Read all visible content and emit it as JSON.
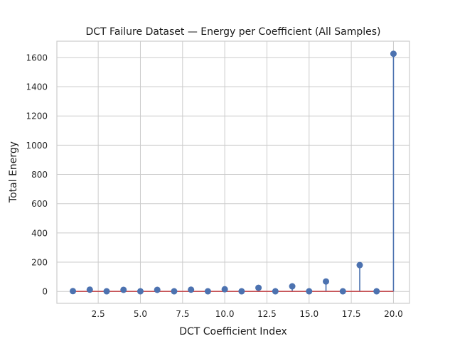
{
  "chart_data": {
    "type": "stem",
    "title": "DCT Failure Dataset — Energy per Coefficient (All Samples)",
    "xlabel": "DCT Coefficient Index",
    "ylabel": "Total Energy",
    "xlim": [
      0.05,
      20.95
    ],
    "ylim": [
      -81.5,
      1711
    ],
    "xticks": [
      2.5,
      5.0,
      7.5,
      10.0,
      12.5,
      15.0,
      17.5,
      20.0
    ],
    "xtick_labels": [
      "2.5",
      "5.0",
      "7.5",
      "10.0",
      "12.5",
      "15.0",
      "17.5",
      "20.0"
    ],
    "yticks": [
      0,
      200,
      400,
      600,
      800,
      1000,
      1200,
      1400,
      1600
    ],
    "ytick_labels": [
      "0",
      "200",
      "400",
      "600",
      "800",
      "1000",
      "1200",
      "1400",
      "1600"
    ],
    "grid": true,
    "baseline": 0,
    "x": [
      1,
      2,
      3,
      4,
      5,
      6,
      7,
      8,
      9,
      10,
      11,
      12,
      13,
      14,
      15,
      16,
      17,
      18,
      19,
      20
    ],
    "values": [
      2,
      12,
      1,
      11,
      1,
      11,
      1,
      12,
      1,
      15,
      1,
      25,
      1,
      35,
      1,
      68,
      1,
      180,
      1,
      1625
    ],
    "colors": {
      "stem": "#4c72b0",
      "baseline": "#c44e52",
      "grid": "#cccccc"
    }
  }
}
